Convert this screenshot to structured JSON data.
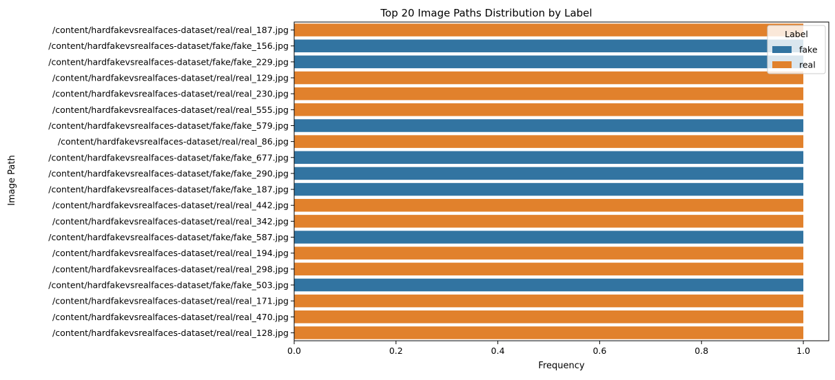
{
  "chart_data": {
    "type": "bar",
    "orientation": "horizontal",
    "title": "Top 20 Image Paths Distribution by Label",
    "xlabel": "Frequency",
    "ylabel": "Image Path",
    "xlim": [
      0,
      1.05
    ],
    "xticks": [
      "0.0",
      "0.2",
      "0.4",
      "0.6",
      "0.8",
      "1.0"
    ],
    "grid": false,
    "legend": {
      "title": "Label",
      "position": "top-right",
      "entries": [
        {
          "name": "fake",
          "color": "#3274a1"
        },
        {
          "name": "real",
          "color": "#e1812c"
        }
      ]
    },
    "categories": [
      "/content/hardfakevsrealfaces-dataset/real/real_187.jpg",
      "/content/hardfakevsrealfaces-dataset/fake/fake_156.jpg",
      "/content/hardfakevsrealfaces-dataset/fake/fake_229.jpg",
      "/content/hardfakevsrealfaces-dataset/real/real_129.jpg",
      "/content/hardfakevsrealfaces-dataset/real/real_230.jpg",
      "/content/hardfakevsrealfaces-dataset/real/real_555.jpg",
      "/content/hardfakevsrealfaces-dataset/fake/fake_579.jpg",
      "/content/hardfakevsrealfaces-dataset/real/real_86.jpg",
      "/content/hardfakevsrealfaces-dataset/fake/fake_677.jpg",
      "/content/hardfakevsrealfaces-dataset/fake/fake_290.jpg",
      "/content/hardfakevsrealfaces-dataset/fake/fake_187.jpg",
      "/content/hardfakevsrealfaces-dataset/real/real_442.jpg",
      "/content/hardfakevsrealfaces-dataset/real/real_342.jpg",
      "/content/hardfakevsrealfaces-dataset/fake/fake_587.jpg",
      "/content/hardfakevsrealfaces-dataset/real/real_194.jpg",
      "/content/hardfakevsrealfaces-dataset/real/real_298.jpg",
      "/content/hardfakevsrealfaces-dataset/fake/fake_503.jpg",
      "/content/hardfakevsrealfaces-dataset/real/real_171.jpg",
      "/content/hardfakevsrealfaces-dataset/real/real_470.jpg",
      "/content/hardfakevsrealfaces-dataset/real/real_128.jpg"
    ],
    "labels": [
      "real",
      "fake",
      "fake",
      "real",
      "real",
      "real",
      "fake",
      "real",
      "fake",
      "fake",
      "fake",
      "real",
      "real",
      "fake",
      "real",
      "real",
      "fake",
      "real",
      "real",
      "real"
    ],
    "values": [
      1,
      1,
      1,
      1,
      1,
      1,
      1,
      1,
      1,
      1,
      1,
      1,
      1,
      1,
      1,
      1,
      1,
      1,
      1,
      1
    ]
  }
}
